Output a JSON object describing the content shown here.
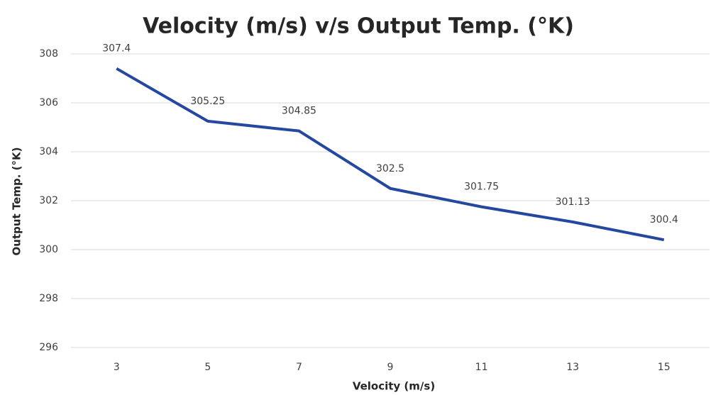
{
  "chart_data": {
    "type": "line",
    "title": "Velocity (m/s) v/s Output Temp. (°K)",
    "x_label": "Velocity (m/s)",
    "y_label": "Output Temp. (°K)",
    "categories": [
      "3",
      "5",
      "7",
      "9",
      "11",
      "13",
      "15"
    ],
    "series": [
      {
        "name": "Output Temp.",
        "color": "#2447a0",
        "values": [
          307.4,
          305.25,
          304.85,
          302.5,
          301.75,
          301.13,
          300.4
        ]
      }
    ],
    "ylim": [
      296,
      308
    ],
    "yticks": [
      296,
      298,
      300,
      302,
      304,
      306,
      308
    ],
    "grid": true
  }
}
